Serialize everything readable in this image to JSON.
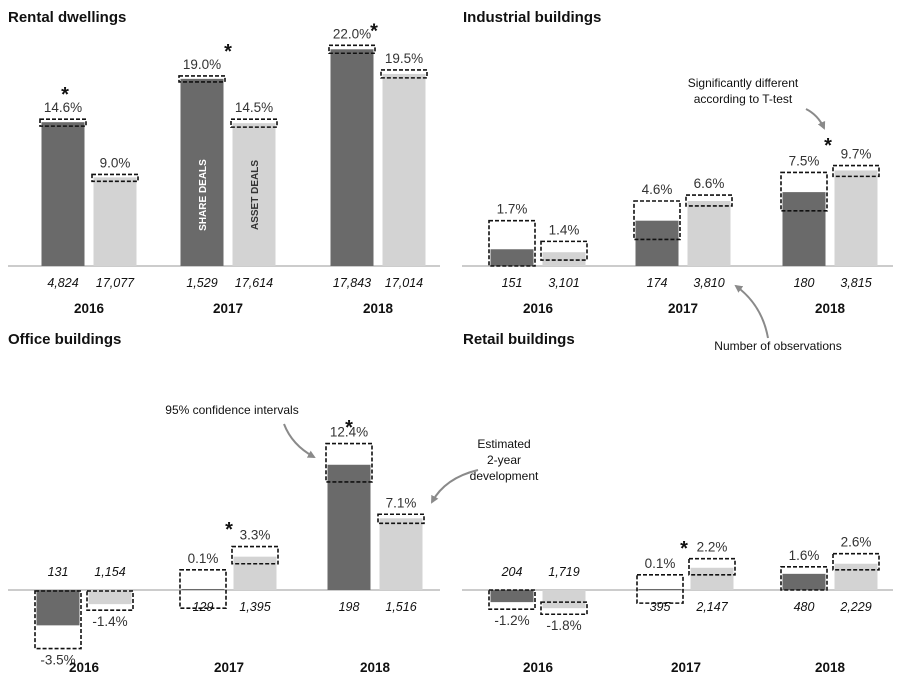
{
  "colors": {
    "share_deals": "#6a6a6a",
    "asset_deals": "#d3d3d3",
    "ci_box": "#111111",
    "axis": "#9a9a9a",
    "arrow": "#8a8a8a"
  },
  "bar_labels": {
    "share": "SHARE DEALS",
    "asset": "ASSET DEALS"
  },
  "annotations": {
    "significance": "Significantly different according to T-test",
    "observations": "Number of observations",
    "confidence": "95% confidence intervals",
    "estimated": "Estimated 2-year development"
  },
  "chart_data": [
    {
      "type": "bar",
      "title": "Rental dwellings",
      "categories": [
        "2016",
        "2017",
        "2018"
      ],
      "series": [
        {
          "name": "SHARE DEALS",
          "values": [
            14.6,
            19.0,
            22.0
          ],
          "labels": [
            "14.6%",
            "19.0%",
            "22.0%"
          ],
          "observations": [
            "4,824",
            "1,529",
            "17,843"
          ]
        },
        {
          "name": "ASSET DEALS",
          "values": [
            9.0,
            14.5,
            19.5
          ],
          "labels": [
            "9.0%",
            "14.5%",
            "19.5%"
          ],
          "observations": [
            "17,077",
            "17,614",
            "17,014"
          ]
        }
      ],
      "ci": [
        [
          14.2,
          14.9
        ],
        [
          18.7,
          19.3
        ],
        [
          21.6,
          22.4
        ]
      ],
      "ci_asset": [
        [
          8.6,
          9.3
        ],
        [
          14.1,
          14.9
        ],
        [
          19.1,
          19.9
        ]
      ],
      "significant": [
        true,
        true,
        true
      ],
      "unit": "%",
      "ylim": [
        0,
        22.5
      ]
    },
    {
      "type": "bar",
      "title": "Industrial buildings",
      "categories": [
        "2016",
        "2017",
        "2018"
      ],
      "series": [
        {
          "name": "SHARE DEALS",
          "values": [
            1.7,
            4.6,
            7.5
          ],
          "labels": [
            "1.7%",
            "4.6%",
            "7.5%"
          ],
          "observations": [
            "151",
            "174",
            "180"
          ]
        },
        {
          "name": "ASSET DEALS",
          "values": [
            1.4,
            6.6,
            9.7
          ],
          "labels": [
            "1.4%",
            "6.6%",
            "9.7%"
          ],
          "observations": [
            "3,101",
            "3,810",
            "3,815"
          ]
        }
      ],
      "ci": [
        [
          0,
          4.6
        ],
        [
          2.7,
          6.6
        ],
        [
          5.6,
          9.5
        ]
      ],
      "ci_asset": [
        [
          0.6,
          2.5
        ],
        [
          6.1,
          7.2
        ],
        [
          9.1,
          10.2
        ]
      ],
      "significant": [
        false,
        false,
        true
      ],
      "unit": "%",
      "ylim": [
        0,
        22.5
      ]
    },
    {
      "type": "bar",
      "title": "Office buildings",
      "categories": [
        "2016",
        "2017",
        "2018"
      ],
      "series": [
        {
          "name": "SHARE DEALS",
          "values": [
            -3.5,
            0.1,
            12.4
          ],
          "labels": [
            "-3.5%",
            "0.1%",
            "12.4%"
          ],
          "observations": [
            "131",
            "129",
            "198"
          ]
        },
        {
          "name": "ASSET DEALS",
          "values": [
            -1.4,
            3.3,
            7.1
          ],
          "labels": [
            "-1.4%",
            "3.3%",
            "7.1%"
          ],
          "observations": [
            "1,154",
            "1,395",
            "1,516"
          ]
        }
      ],
      "ci": [
        [
          -5.8,
          -0.1
        ],
        [
          -1.8,
          2.0
        ],
        [
          10.7,
          14.5
        ]
      ],
      "ci_asset": [
        [
          -2.0,
          -0.1
        ],
        [
          2.6,
          4.3
        ],
        [
          6.6,
          7.5
        ]
      ],
      "significant": [
        false,
        true,
        true
      ],
      "unit": "%",
      "ylim": [
        -6,
        15
      ]
    },
    {
      "type": "bar",
      "title": "Retail buildings",
      "categories": [
        "2016",
        "2017",
        "2018"
      ],
      "series": [
        {
          "name": "SHARE DEALS",
          "values": [
            -1.2,
            0.1,
            1.6
          ],
          "labels": [
            "-1.2%",
            "0.1%",
            "1.6%"
          ],
          "observations": [
            "204",
            "395",
            "480"
          ]
        },
        {
          "name": "ASSET DEALS",
          "values": [
            -1.8,
            2.2,
            2.6
          ],
          "labels": [
            "-1.8%",
            "2.2%",
            "2.6%"
          ],
          "observations": [
            "1,719",
            "2,147",
            "2,229"
          ]
        }
      ],
      "ci": [
        [
          -1.9,
          0.0
        ],
        [
          -1.3,
          1.5
        ],
        [
          0.0,
          2.3
        ]
      ],
      "ci_asset": [
        [
          -2.4,
          -1.2
        ],
        [
          1.5,
          3.1
        ],
        [
          2.0,
          3.6
        ]
      ],
      "significant": [
        false,
        true,
        false
      ],
      "unit": "%",
      "ylim": [
        -6,
        15
      ]
    }
  ]
}
